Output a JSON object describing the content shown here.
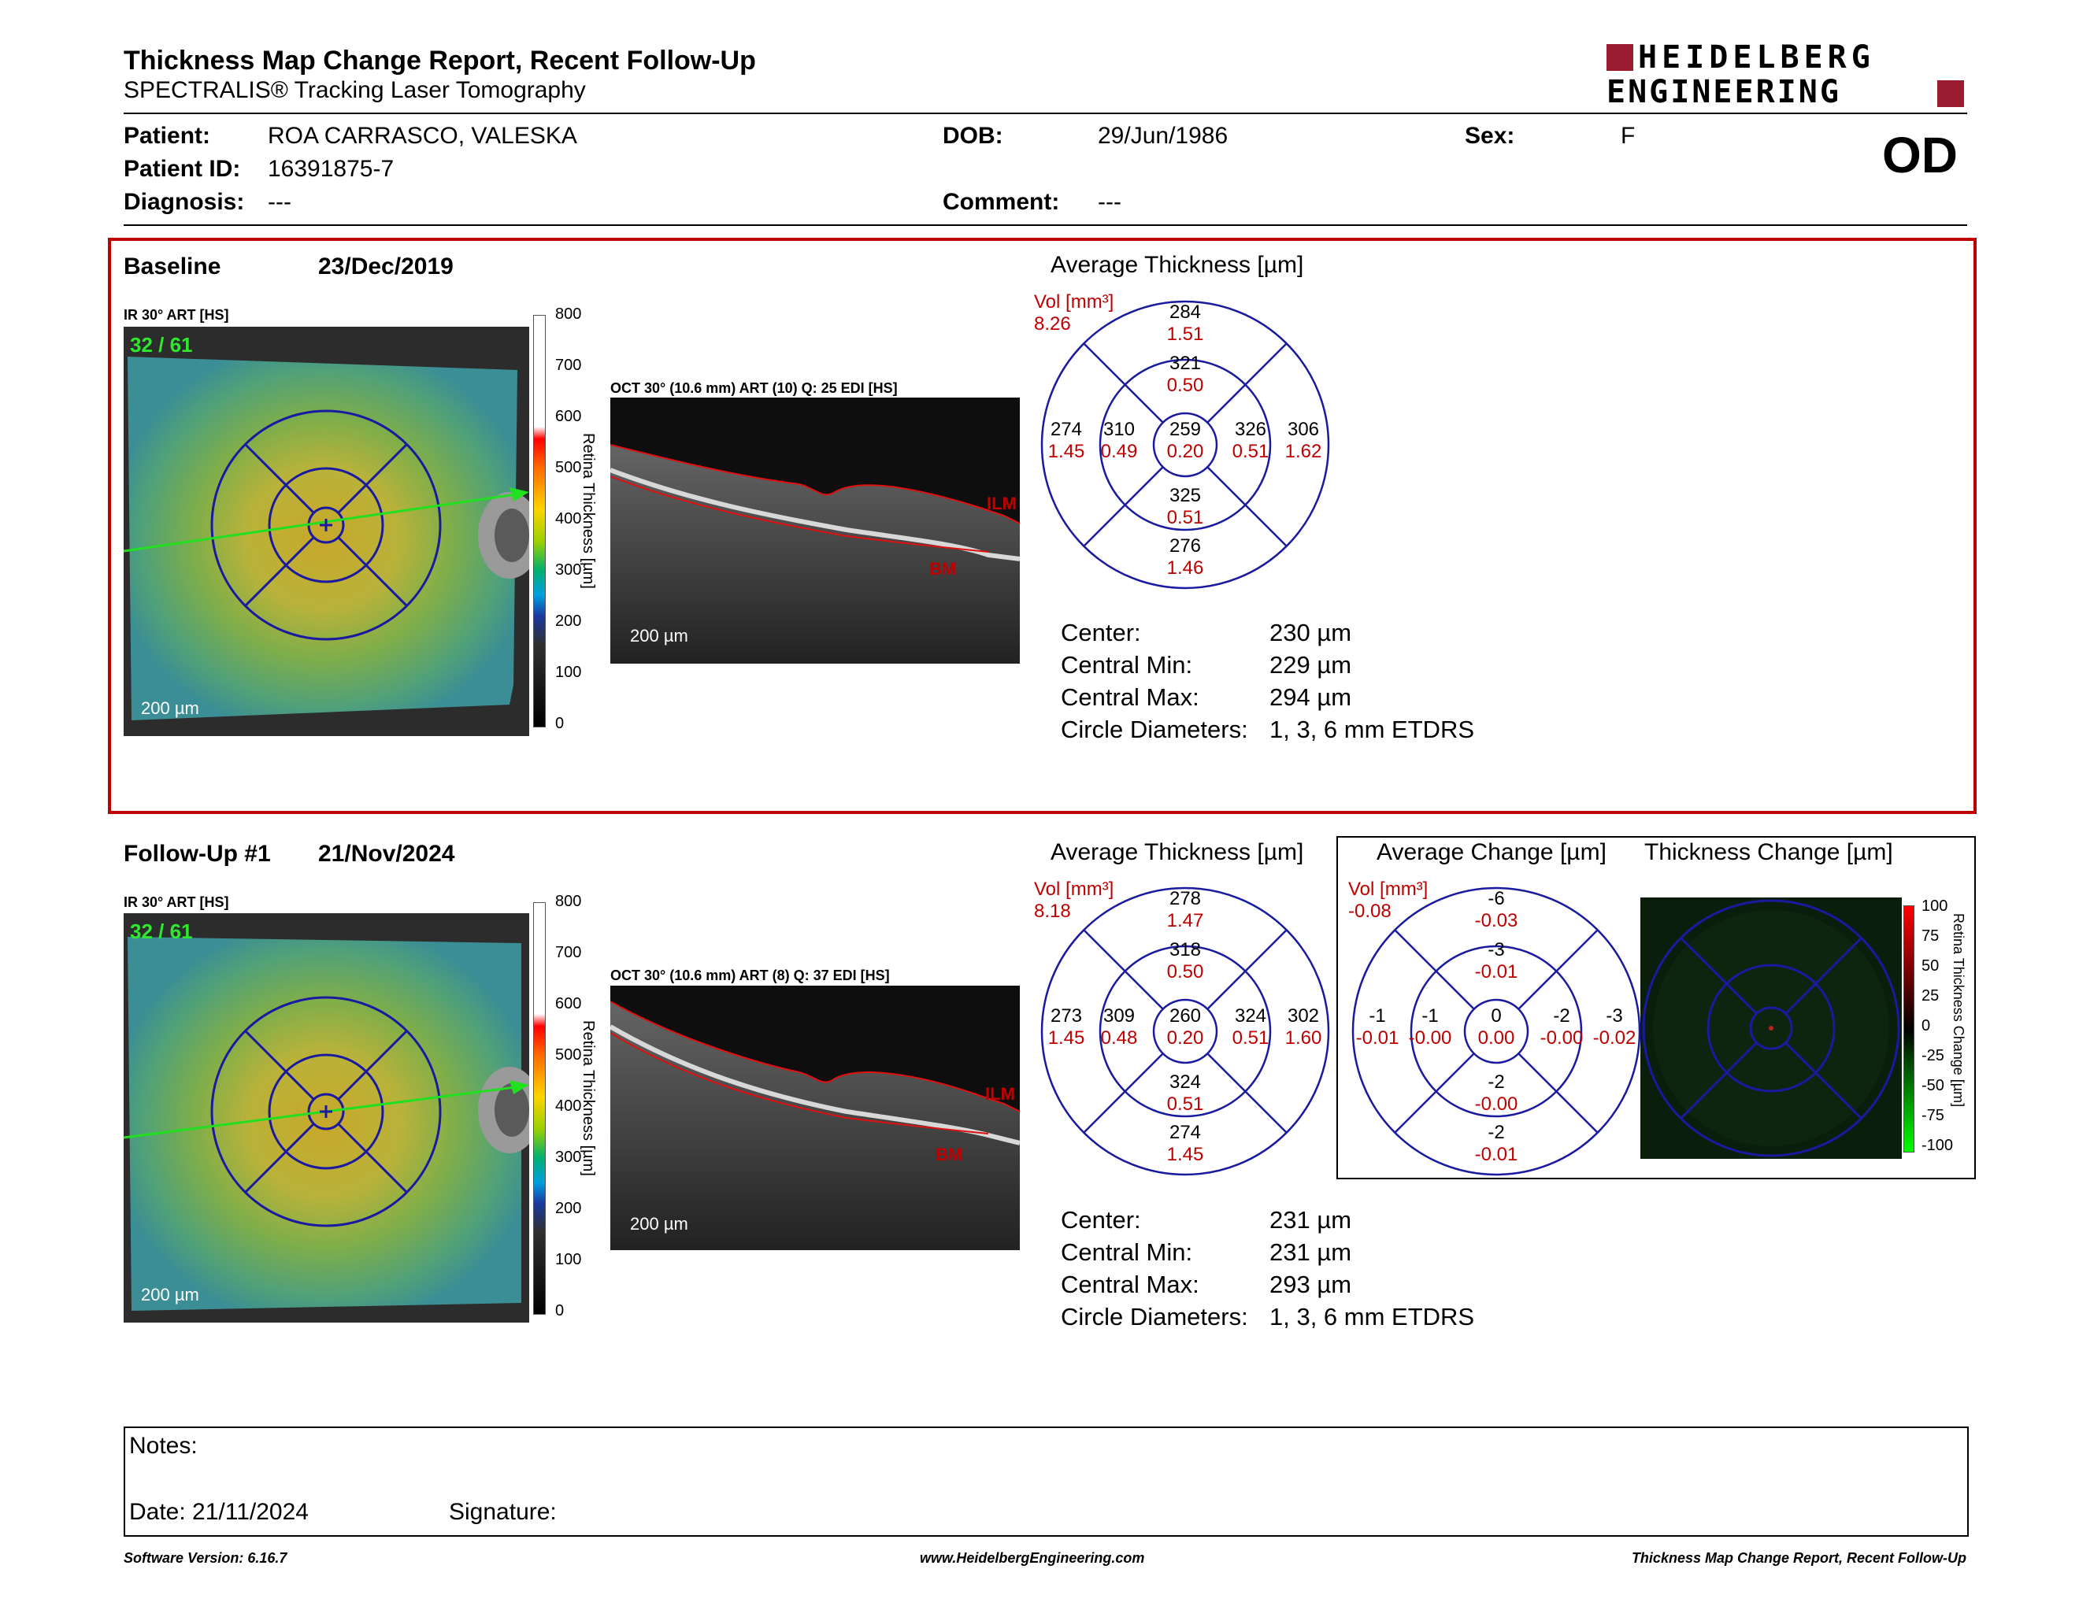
{
  "header": {
    "title": "Thickness Map Change Report, Recent Follow-Up",
    "subtitle": "SPECTRALIS® Tracking Laser Tomography",
    "logo_line1": "HEIDELBERG",
    "logo_line2": "ENGINEERING",
    "eye": "OD"
  },
  "patient": {
    "patient_label": "Patient:",
    "patient_value": "ROA CARRASCO, VALESKA",
    "id_label": "Patient ID:",
    "id_value": "16391875-7",
    "diagnosis_label": "Diagnosis:",
    "diagnosis_value": "---",
    "dob_label": "DOB:",
    "dob_value": "29/Jun/1986",
    "comment_label": "Comment:",
    "comment_value": "---",
    "sex_label": "Sex:",
    "sex_value": "F"
  },
  "baseline": {
    "label": "Baseline",
    "date": "23/Dec/2019",
    "ir_caption": "IR 30° ART [HS]",
    "ir_count": "32 / 61",
    "ir_scale": "200 µm",
    "oct_caption": "OCT 30° (10.6 mm) ART (10) Q: 25 EDI [HS]",
    "oct_scale": "200 µm",
    "ilm": "ILM",
    "bm": "BM",
    "avg_title": "Average Thickness [µm]",
    "vol_label": "Vol [mm³]",
    "vol_value": "8.26",
    "grid": {
      "outer_sup": "284",
      "outer_sup_v": "1.51",
      "inner_sup": "321",
      "inner_sup_v": "0.50",
      "outer_temp": "274",
      "outer_temp_v": "1.45",
      "inner_temp": "310",
      "inner_temp_v": "0.49",
      "center": "259",
      "center_v": "0.20",
      "inner_nas": "326",
      "inner_nas_v": "0.51",
      "outer_nas": "306",
      "outer_nas_v": "1.62",
      "inner_inf": "325",
      "inner_inf_v": "0.51",
      "outer_inf": "276",
      "outer_inf_v": "1.46"
    },
    "stats": {
      "center_label": "Center:",
      "center_value": "230 µm",
      "min_label": "Central Min:",
      "min_value": "229 µm",
      "max_label": "Central Max:",
      "max_value": "294 µm",
      "circ_label": "Circle Diameters:",
      "circ_value": "1, 3, 6 mm ETDRS"
    }
  },
  "followup": {
    "label": "Follow-Up #1",
    "date": "21/Nov/2024",
    "ir_caption": "IR 30° ART [HS]",
    "ir_count": "32 / 61",
    "ir_scale": "200 µm",
    "oct_caption": "OCT 30° (10.6 mm) ART (8) Q: 37 EDI [HS]",
    "oct_scale": "200 µm",
    "ilm": "ILM",
    "bm": "BM",
    "avg_title": "Average Thickness [µm]",
    "vol_label": "Vol [mm³]",
    "vol_value": "8.18",
    "grid": {
      "outer_sup": "278",
      "outer_sup_v": "1.47",
      "inner_sup": "318",
      "inner_sup_v": "0.50",
      "outer_temp": "273",
      "outer_temp_v": "1.45",
      "inner_temp": "309",
      "inner_temp_v": "0.48",
      "center": "260",
      "center_v": "0.20",
      "inner_nas": "324",
      "inner_nas_v": "0.51",
      "outer_nas": "302",
      "outer_nas_v": "1.60",
      "inner_inf": "324",
      "inner_inf_v": "0.51",
      "outer_inf": "274",
      "outer_inf_v": "1.45"
    },
    "change_title": "Average Change [µm]",
    "change_vol_label": "Vol [mm³]",
    "change_vol_value": "-0.08",
    "change_grid": {
      "outer_sup": "-6",
      "outer_sup_v": "-0.03",
      "inner_sup": "-3",
      "inner_sup_v": "-0.01",
      "outer_temp": "-1",
      "outer_temp_v": "-0.01",
      "inner_temp": "-1",
      "inner_temp_v": "-0.00",
      "center": "0",
      "center_v": "0.00",
      "inner_nas": "-2",
      "inner_nas_v": "-0.00",
      "outer_nas": "-3",
      "outer_nas_v": "-0.02",
      "inner_inf": "-2",
      "inner_inf_v": "-0.00",
      "outer_inf": "-2",
      "outer_inf_v": "-0.01"
    },
    "tchange_title": "Thickness Change [µm]",
    "stats": {
      "center_label": "Center:",
      "center_value": "231 µm",
      "min_label": "Central Min:",
      "min_value": "231 µm",
      "max_label": "Central Max:",
      "max_value": "293 µm",
      "circ_label": "Circle Diameters:",
      "circ_value": "1, 3, 6 mm ETDRS"
    }
  },
  "colorbar": {
    "ticks": [
      "800",
      "700",
      "600",
      "500",
      "400",
      "300",
      "200",
      "100",
      "0"
    ],
    "label": "Retina Thickness [µm]"
  },
  "change_colorbar": {
    "ticks": [
      "100",
      "75",
      "50",
      "25",
      "0",
      "-25",
      "-50",
      "-75",
      "-100"
    ],
    "label": "Retina Thickness Change [µm]"
  },
  "notes": {
    "notes_label": "Notes:",
    "date_label": "Date: 21/11/2024",
    "signature_label": "Signature:"
  },
  "footer": {
    "left": "Software Version: 6.16.7",
    "center": "www.HeidelbergEngineering.com",
    "right": "Thickness Map Change Report, Recent Follow-Up"
  },
  "colors": {
    "accent_red": "#c00000",
    "grid_blue": "#1a1aa0",
    "brand_red": "#9b1b30"
  }
}
